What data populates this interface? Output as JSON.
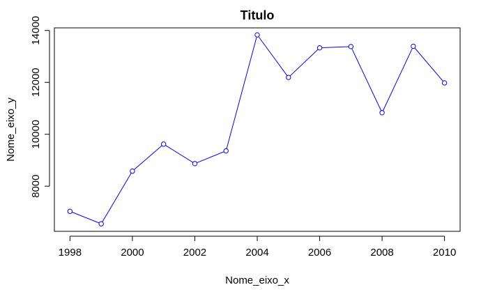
{
  "chart_data": {
    "type": "line",
    "title": "Titulo",
    "xlabel": "Nome_eixo_x",
    "ylabel": "Nome_eixo_y",
    "x": [
      1998,
      1999,
      2000,
      2001,
      2002,
      2003,
      2004,
      2005,
      2006,
      2007,
      2008,
      2009,
      2010
    ],
    "series": [
      {
        "values": [
          7030,
          6550,
          8580,
          9620,
          8870,
          9360,
          13830,
          12190,
          13330,
          13380,
          10830,
          13390,
          11980
        ]
      }
    ],
    "xlim": [
      1997.5,
      2010.5
    ],
    "ylim": [
      6260,
      14100
    ],
    "x_ticks": [
      "1998",
      "2000",
      "2002",
      "2004",
      "2006",
      "2008",
      "2010"
    ],
    "y_ticks": [
      "8000",
      "10000",
      "12000",
      "14000"
    ],
    "markers": "open-circle",
    "grid": false,
    "legend": "none",
    "colors": {
      "series": "#0000ff",
      "axis": "#000000"
    }
  }
}
